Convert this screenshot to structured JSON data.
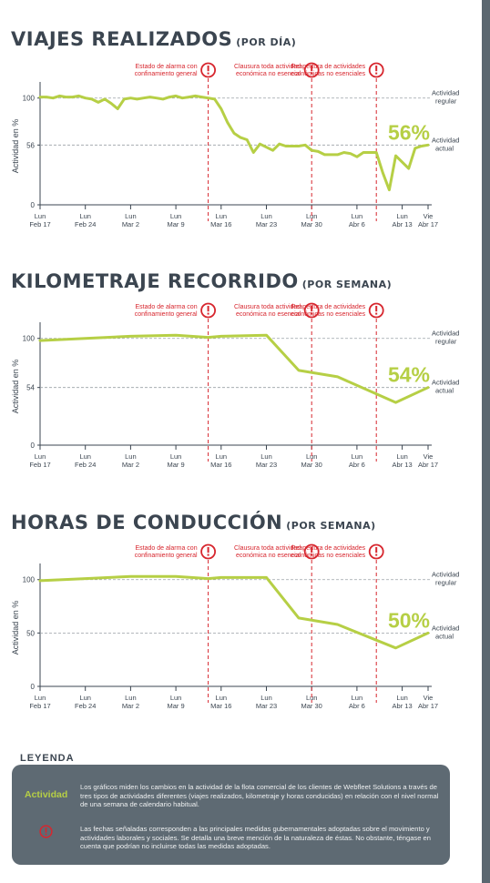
{
  "sections": [
    {
      "title": "VIAJES REALIZADOS",
      "subtitle": "(POR DÍA)"
    },
    {
      "title": "KILOMETRAJE RECORRIDO",
      "subtitle": "(POR SEMANA)"
    },
    {
      "title": "HORAS DE CONDUCCIÓN",
      "subtitle": "(POR SEMANA)"
    }
  ],
  "legend": {
    "title": "LEYENDA",
    "activity_word": "Actividad",
    "activity_text": "Los gráficos miden los cambios en la actividad de la flota comercial de los clientes de Webfleet Solutions a través de tres tipos de actividades diferentes (viajes realizados, kilometraje y horas conducidas) en relación con el nivel normal de una semana de calendario habitual.",
    "icon_name": "alert-icon",
    "measures_text": "Las fechas señaladas corresponden a las principales medidas gubernamentales adoptadas sobre el movimiento y actividades laborales y sociales. Se detalla una breve mención de la naturaleza de éstas. No obstante, téngase en cuenta que podrían no incluirse todas las medidas adoptadas."
  },
  "colors": {
    "line": "#b6cf45",
    "event": "#d7262e",
    "text": "#3b4550",
    "legend_bg": "#5e6a73"
  },
  "chart_data": [
    {
      "type": "line",
      "title": "VIAJES REALIZADOS (POR DÍA)",
      "ylabel": "Actividad en %",
      "ylim": [
        0,
        110
      ],
      "yticks": [
        0,
        56,
        100
      ],
      "xlim": [
        0,
        60
      ],
      "xticks": [
        {
          "x": 0,
          "l1": "Lun",
          "l2": "Feb 17"
        },
        {
          "x": 7,
          "l1": "Lun",
          "l2": "Feb 24"
        },
        {
          "x": 14,
          "l1": "Lun",
          "l2": "Mar 2"
        },
        {
          "x": 21,
          "l1": "Lun",
          "l2": "Mar 9"
        },
        {
          "x": 28,
          "l1": "Lun",
          "l2": "Mar 16"
        },
        {
          "x": 35,
          "l1": "Lun",
          "l2": "Mar 23"
        },
        {
          "x": 42,
          "l1": "Lun",
          "l2": "Mar 30"
        },
        {
          "x": 49,
          "l1": "Lun",
          "l2": "Abr 6"
        },
        {
          "x": 56,
          "l1": "Lun",
          "l2": "Abr 13"
        },
        {
          "x": 60,
          "l1": "Vie",
          "l2": "Abr 17"
        }
      ],
      "reference_lines": [
        {
          "y": 100,
          "l1": "Actividad",
          "l2": "regular"
        },
        {
          "y": 56,
          "l1": "Actividad",
          "l2": "actual"
        }
      ],
      "callout": "56%",
      "events": [
        {
          "x": 26,
          "l1": "Estado de alarma con",
          "l2": "confinamiento general"
        },
        {
          "x": 42,
          "l1": "Clausura toda actividad",
          "l2": "económica no esencial"
        },
        {
          "x": 52,
          "l1": "Reapertura de actividades",
          "l2": "económicas no esenciales"
        }
      ],
      "x": [
        0,
        1,
        2,
        3,
        4,
        5,
        6,
        7,
        8,
        9,
        10,
        11,
        12,
        13,
        14,
        15,
        16,
        17,
        18,
        19,
        20,
        21,
        22,
        23,
        24,
        25,
        26,
        27,
        28,
        29,
        30,
        31,
        32,
        33,
        34,
        35,
        36,
        37,
        38,
        39,
        40,
        41,
        42,
        43,
        44,
        45,
        46,
        47,
        48,
        49,
        50,
        51,
        52,
        53,
        54,
        55,
        56,
        57,
        58,
        59,
        60
      ],
      "values": [
        101,
        101,
        100,
        102,
        101,
        101,
        102,
        100,
        99,
        96,
        99,
        95,
        90,
        99,
        100,
        99,
        100,
        101,
        100,
        99,
        101,
        102,
        100,
        101,
        102,
        101,
        100,
        99,
        90,
        77,
        67,
        63,
        61,
        49,
        57,
        54,
        51,
        57,
        55,
        55,
        55,
        56,
        51,
        50,
        47,
        47,
        47,
        49,
        48,
        45,
        49,
        49,
        49,
        30,
        14,
        46,
        40,
        34,
        53,
        55,
        56
      ]
    },
    {
      "type": "line",
      "title": "KILOMETRAJE RECORRIDO (POR SEMANA)",
      "ylabel": "Actividad en %",
      "ylim": [
        0,
        110
      ],
      "yticks": [
        0,
        54,
        100
      ],
      "xlim": [
        0,
        60
      ],
      "xticks": [
        {
          "x": 0,
          "l1": "Lun",
          "l2": "Feb 17"
        },
        {
          "x": 7,
          "l1": "Lun",
          "l2": "Feb 24"
        },
        {
          "x": 14,
          "l1": "Lun",
          "l2": "Mar 2"
        },
        {
          "x": 21,
          "l1": "Lun",
          "l2": "Mar 9"
        },
        {
          "x": 28,
          "l1": "Lun",
          "l2": "Mar 16"
        },
        {
          "x": 35,
          "l1": "Lun",
          "l2": "Mar 23"
        },
        {
          "x": 42,
          "l1": "Lun",
          "l2": "Mar 30"
        },
        {
          "x": 49,
          "l1": "Lun",
          "l2": "Abr 6"
        },
        {
          "x": 56,
          "l1": "Lun",
          "l2": "Abr 13"
        },
        {
          "x": 60,
          "l1": "Vie",
          "l2": "Abr 17"
        }
      ],
      "reference_lines": [
        {
          "y": 100,
          "l1": "Actividad",
          "l2": "regular"
        },
        {
          "y": 54,
          "l1": "Actividad",
          "l2": "actual"
        }
      ],
      "callout": "54%",
      "events": [
        {
          "x": 26,
          "l1": "Estado de alarma con",
          "l2": "confinamiento general"
        },
        {
          "x": 42,
          "l1": "Clausura toda actividad",
          "l2": "económica no esencial"
        },
        {
          "x": 52,
          "l1": "Reapertura de actividades",
          "l2": "económicas no esenciales"
        }
      ],
      "x": [
        0,
        7,
        14,
        21,
        26,
        28,
        35,
        40,
        46,
        55,
        60
      ],
      "values": [
        98,
        100,
        102,
        103,
        101,
        102,
        103,
        70,
        64,
        40,
        54
      ]
    },
    {
      "type": "line",
      "title": "HORAS DE CONDUCCIÓN (POR SEMANA)",
      "ylabel": "Actividad en %",
      "ylim": [
        0,
        110
      ],
      "yticks": [
        0,
        50,
        100
      ],
      "xlim": [
        0,
        60
      ],
      "xticks": [
        {
          "x": 0,
          "l1": "Lun",
          "l2": "Feb 17"
        },
        {
          "x": 7,
          "l1": "Lun",
          "l2": "Feb 24"
        },
        {
          "x": 14,
          "l1": "Lun",
          "l2": "Mar 2"
        },
        {
          "x": 21,
          "l1": "Lun",
          "l2": "Mar 9"
        },
        {
          "x": 28,
          "l1": "Lun",
          "l2": "Mar 16"
        },
        {
          "x": 35,
          "l1": "Lun",
          "l2": "Mar 23"
        },
        {
          "x": 42,
          "l1": "Lun",
          "l2": "Mar 30"
        },
        {
          "x": 49,
          "l1": "Lun",
          "l2": "Abr 6"
        },
        {
          "x": 56,
          "l1": "Lun",
          "l2": "Abr 13"
        },
        {
          "x": 60,
          "l1": "Vie",
          "l2": "Abr 17"
        }
      ],
      "reference_lines": [
        {
          "y": 100,
          "l1": "Actividad",
          "l2": "regular"
        },
        {
          "y": 50,
          "l1": "Actividad",
          "l2": "actual"
        }
      ],
      "callout": "50%",
      "events": [
        {
          "x": 26,
          "l1": "Estado de alarma con",
          "l2": "confinamiento general"
        },
        {
          "x": 42,
          "l1": "Clausura toda actividad",
          "l2": "económica no esencial"
        },
        {
          "x": 52,
          "l1": "Reapertura de actividades",
          "l2": "económicas no esenciales"
        }
      ],
      "x": [
        0,
        7,
        14,
        21,
        26,
        28,
        35,
        40,
        46,
        55,
        60
      ],
      "values": [
        99,
        101,
        103,
        103,
        101,
        102,
        102,
        64,
        58,
        36,
        50
      ]
    }
  ]
}
